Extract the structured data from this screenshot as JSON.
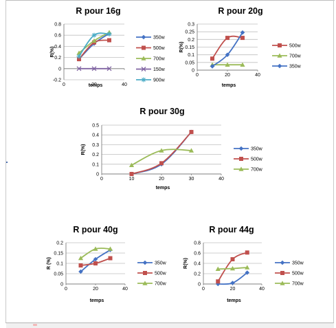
{
  "chart_data": [
    {
      "type": "line",
      "title": "R pour 16g",
      "xlabel": "temps",
      "ylabel": "R(%)",
      "xlim": [
        0,
        40
      ],
      "ylim": [
        -0.2,
        0.8
      ],
      "x_ticks": [
        "0",
        "20",
        "40"
      ],
      "y_ticks": [
        "-0.2",
        "0",
        "0.2",
        "0.4",
        "0.6",
        "0.8"
      ],
      "legend_position": "right",
      "grid": true,
      "series": [
        {
          "name": "350w",
          "color": "#4472c4",
          "marker": "diamond",
          "x": [
            10,
            20,
            30
          ],
          "y": [
            0.17,
            0.45,
            0.63
          ]
        },
        {
          "name": "500w",
          "color": "#c0504d",
          "marker": "square",
          "x": [
            10,
            20,
            30
          ],
          "y": [
            0.17,
            0.47,
            0.51
          ]
        },
        {
          "name": "700w",
          "color": "#9bbb59",
          "marker": "triangle",
          "x": [
            10,
            20,
            30
          ],
          "y": [
            0.28,
            0.5,
            0.65
          ]
        },
        {
          "name": "150w",
          "color": "#8064a2",
          "marker": "x",
          "x": [
            10,
            20,
            30
          ],
          "y": [
            0.0,
            0.0,
            0.0
          ]
        },
        {
          "name": "900w",
          "color": "#4bacc6",
          "marker": "star",
          "x": [
            10,
            20,
            30
          ],
          "y": [
            0.22,
            0.6,
            0.62
          ]
        }
      ]
    },
    {
      "type": "line",
      "title": "R pour 20g",
      "xlabel": "temps",
      "ylabel": "R(%)",
      "xlim": [
        0,
        40
      ],
      "ylim": [
        0,
        0.3
      ],
      "x_ticks": [
        "0",
        "20",
        "40"
      ],
      "y_ticks": [
        "0",
        "0.05",
        "0.1",
        "0.15",
        "0.2",
        "0.25",
        "0.3"
      ],
      "legend_position": "right",
      "grid": true,
      "series": [
        {
          "name": "500w",
          "color": "#c0504d",
          "marker": "square",
          "x": [
            10,
            20,
            30
          ],
          "y": [
            0.075,
            0.21,
            0.21
          ]
        },
        {
          "name": "700w",
          "color": "#9bbb59",
          "marker": "triangle",
          "x": [
            10,
            20,
            30
          ],
          "y": [
            0.035,
            0.035,
            0.035
          ]
        },
        {
          "name": "350w",
          "color": "#4472c4",
          "marker": "diamond",
          "x": [
            10,
            20,
            30
          ],
          "y": [
            0.025,
            0.1,
            0.245
          ]
        }
      ]
    },
    {
      "type": "line",
      "title": "R pour 30g",
      "xlabel": "temps",
      "ylabel": "R(%)",
      "xlim": [
        0,
        40
      ],
      "ylim": [
        0,
        0.5
      ],
      "x_ticks": [
        "0",
        "10",
        "20",
        "30",
        "40"
      ],
      "y_ticks": [
        "0",
        "0.1",
        "0.2",
        "0.3",
        "0.4",
        "0.5"
      ],
      "legend_position": "right",
      "grid": true,
      "series": [
        {
          "name": "350w",
          "color": "#4472c4",
          "marker": "diamond",
          "x": [
            10,
            20,
            30
          ],
          "y": [
            0.0,
            0.1,
            0.43
          ]
        },
        {
          "name": "500w",
          "color": "#c0504d",
          "marker": "square",
          "x": [
            10,
            20,
            30
          ],
          "y": [
            0.0,
            0.11,
            0.43
          ]
        },
        {
          "name": "700w",
          "color": "#9bbb59",
          "marker": "triangle",
          "x": [
            10,
            20,
            30
          ],
          "y": [
            0.09,
            0.24,
            0.24
          ]
        }
      ]
    },
    {
      "type": "line",
      "title": "R pour 40g",
      "xlabel": "temps",
      "ylabel": "R (%)",
      "xlim": [
        0,
        40
      ],
      "ylim": [
        0,
        0.2
      ],
      "x_ticks": [
        "0",
        "20",
        "40"
      ],
      "y_ticks": [
        "0",
        "0.05",
        "0.1",
        "0.15",
        "0.2"
      ],
      "legend_position": "right",
      "grid": true,
      "series": [
        {
          "name": "350w",
          "color": "#4472c4",
          "marker": "diamond",
          "x": [
            10,
            20,
            30
          ],
          "y": [
            0.06,
            0.12,
            0.165
          ]
        },
        {
          "name": "500w",
          "color": "#c0504d",
          "marker": "square",
          "x": [
            10,
            20,
            30
          ],
          "y": [
            0.09,
            0.1,
            0.125
          ]
        },
        {
          "name": "700w",
          "color": "#9bbb59",
          "marker": "triangle",
          "x": [
            10,
            20,
            30
          ],
          "y": [
            0.125,
            0.17,
            0.17
          ]
        }
      ]
    },
    {
      "type": "line",
      "title": "R pour 44g",
      "xlabel": "temps",
      "ylabel": "R(%)",
      "xlim": [
        0,
        40
      ],
      "ylim": [
        0,
        0.8
      ],
      "x_ticks": [
        "0",
        "20",
        "40"
      ],
      "y_ticks": [
        "0",
        "0.2",
        "0.4",
        "0.6",
        "0.8"
      ],
      "legend_position": "right",
      "grid": true,
      "series": [
        {
          "name": "350w",
          "color": "#4472c4",
          "marker": "diamond",
          "x": [
            10,
            20,
            30
          ],
          "y": [
            0.0,
            0.02,
            0.22
          ]
        },
        {
          "name": "500w",
          "color": "#c0504d",
          "marker": "square",
          "x": [
            10,
            20,
            30
          ],
          "y": [
            0.05,
            0.48,
            0.61
          ]
        },
        {
          "name": "700w",
          "color": "#9bbb59",
          "marker": "triangle",
          "x": [
            10,
            20,
            30
          ],
          "y": [
            0.29,
            0.3,
            0.32
          ]
        }
      ]
    }
  ]
}
